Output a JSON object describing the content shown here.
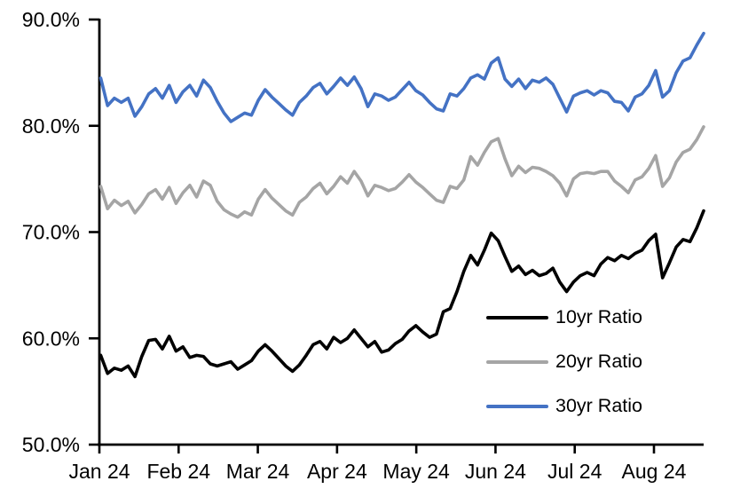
{
  "chart_data": {
    "type": "line",
    "title": "",
    "grid": false,
    "legend_position": "inside-bottom-right",
    "x_axis": {
      "tick_labels": [
        "Jan 24",
        "Feb 24",
        "Mar 24",
        "Apr 24",
        "May 24",
        "Jun 24",
        "Jul 24",
        "Aug 24"
      ]
    },
    "y_axis": {
      "min": 50,
      "max": 90,
      "tick_values": [
        50,
        60,
        70,
        80,
        90
      ],
      "tick_labels": [
        "50.0%",
        "60.0%",
        "70.0%",
        "80.0%",
        "90.0%"
      ],
      "format": "percent"
    },
    "series": [
      {
        "name": "10yr Ratio",
        "color": "#000000",
        "values": [
          58.4,
          56.7,
          57.2,
          57.0,
          57.4,
          56.4,
          58.3,
          59.8,
          59.9,
          59.0,
          60.2,
          58.8,
          59.2,
          58.2,
          58.4,
          58.3,
          57.6,
          57.4,
          57.6,
          57.8,
          57.1,
          57.5,
          57.9,
          58.8,
          59.4,
          58.8,
          58.1,
          57.4,
          56.9,
          57.5,
          58.4,
          59.4,
          59.7,
          59.0,
          60.1,
          59.6,
          60.0,
          60.8,
          60.0,
          59.2,
          59.7,
          58.7,
          58.9,
          59.5,
          59.9,
          60.7,
          61.2,
          60.6,
          60.1,
          60.4,
          62.5,
          62.8,
          64.4,
          66.3,
          67.8,
          66.9,
          68.3,
          69.9,
          69.2,
          67.7,
          66.3,
          66.8,
          66.0,
          66.4,
          65.9,
          66.1,
          66.6,
          65.3,
          64.4,
          65.3,
          65.9,
          66.2,
          65.9,
          67.0,
          67.6,
          67.3,
          67.8,
          67.5,
          68.0,
          68.3,
          69.2,
          69.8,
          65.7,
          67.1,
          68.6,
          69.3,
          69.1,
          70.4,
          72.0
        ]
      },
      {
        "name": "20yr Ratio",
        "color": "#A5A5A5",
        "values": [
          74.3,
          72.2,
          73.0,
          72.5,
          72.9,
          71.8,
          72.6,
          73.6,
          74.0,
          73.1,
          74.2,
          72.7,
          73.7,
          74.4,
          73.3,
          74.8,
          74.4,
          72.9,
          72.1,
          71.7,
          71.4,
          71.9,
          71.6,
          73.1,
          74.0,
          73.2,
          72.6,
          72.0,
          71.6,
          72.8,
          73.3,
          74.1,
          74.6,
          73.6,
          74.3,
          75.2,
          74.6,
          75.7,
          74.8,
          73.4,
          74.4,
          74.2,
          73.9,
          74.1,
          74.7,
          75.4,
          74.7,
          74.2,
          73.6,
          73.0,
          72.8,
          74.3,
          74.1,
          74.9,
          77.1,
          76.3,
          77.5,
          78.5,
          78.8,
          76.9,
          75.3,
          76.2,
          75.6,
          76.1,
          76.0,
          75.7,
          75.3,
          74.6,
          73.4,
          75.0,
          75.5,
          75.6,
          75.5,
          75.7,
          75.7,
          74.8,
          74.3,
          73.7,
          74.9,
          75.2,
          76.0,
          77.2,
          74.3,
          75.1,
          76.6,
          77.5,
          77.8,
          78.7,
          79.9
        ]
      },
      {
        "name": "30yr Ratio",
        "color": "#4472C4",
        "values": [
          84.5,
          81.9,
          82.6,
          82.2,
          82.6,
          80.9,
          81.8,
          83.0,
          83.5,
          82.6,
          83.8,
          82.2,
          83.2,
          83.8,
          82.8,
          84.3,
          83.6,
          82.3,
          81.2,
          80.4,
          80.8,
          81.2,
          81.0,
          82.4,
          83.4,
          82.7,
          82.1,
          81.5,
          81.0,
          82.2,
          82.8,
          83.6,
          84.0,
          83.0,
          83.7,
          84.5,
          83.8,
          84.6,
          83.5,
          81.8,
          83.0,
          82.8,
          82.4,
          82.7,
          83.4,
          84.1,
          83.3,
          82.9,
          82.2,
          81.6,
          81.4,
          83.0,
          82.8,
          83.5,
          84.5,
          84.8,
          84.4,
          85.9,
          86.4,
          84.4,
          83.7,
          84.4,
          83.5,
          84.3,
          84.1,
          84.5,
          83.9,
          82.6,
          81.3,
          82.8,
          83.1,
          83.3,
          82.9,
          83.3,
          83.1,
          82.3,
          82.2,
          81.4,
          82.7,
          83.0,
          83.8,
          85.2,
          82.7,
          83.3,
          85.0,
          86.1,
          86.4,
          87.6,
          88.7
        ]
      }
    ]
  }
}
